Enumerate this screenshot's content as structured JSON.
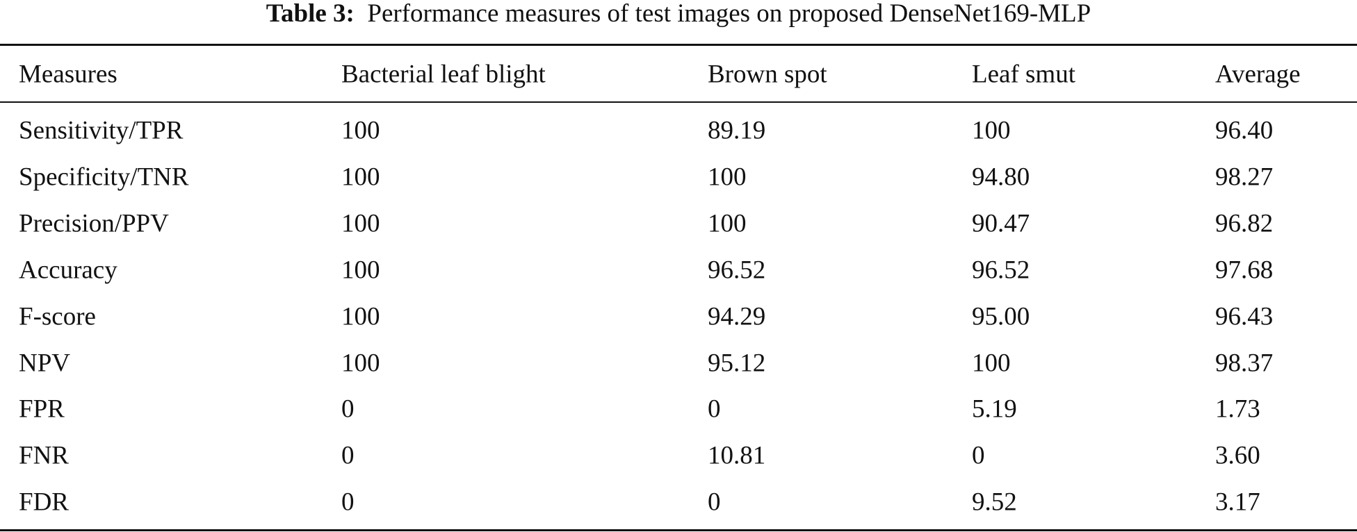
{
  "caption": {
    "label": "Table 3:",
    "text": "Performance measures of test images on proposed DenseNet169-MLP"
  },
  "table": {
    "header": [
      "Measures",
      "Bacterial leaf blight",
      "Brown spot",
      "Leaf smut",
      "Average"
    ],
    "rows": [
      [
        "Sensitivity/TPR",
        "100",
        "89.19",
        "100",
        "96.40"
      ],
      [
        "Specificity/TNR",
        "100",
        "100",
        "94.80",
        "98.27"
      ],
      [
        "Precision/PPV",
        "100",
        "100",
        "90.47",
        "96.82"
      ],
      [
        "Accuracy",
        "100",
        "96.52",
        "96.52",
        "97.68"
      ],
      [
        "F-score",
        "100",
        "94.29",
        "95.00",
        "96.43"
      ],
      [
        "NPV",
        "100",
        "95.12",
        "100",
        "98.37"
      ],
      [
        "FPR",
        "0",
        "0",
        "5.19",
        "1.73"
      ],
      [
        "FNR",
        "0",
        "10.81",
        "0",
        "3.60"
      ],
      [
        "FDR",
        "0",
        "0",
        "9.52",
        "3.17"
      ]
    ]
  }
}
